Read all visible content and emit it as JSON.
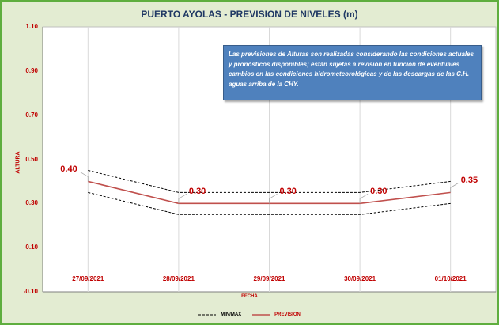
{
  "chart_data": {
    "type": "line",
    "title": "PUERTO AYOLAS - PREVISION DE NIVELES (m)",
    "xlabel": "FECHA",
    "ylabel": "ALTURA",
    "ylim": [
      -0.1,
      1.1
    ],
    "yticks": [
      "1.10",
      "0.90",
      "0.70",
      "0.50",
      "0.30",
      "0.10",
      "-0.10"
    ],
    "categories": [
      "27/09/2021",
      "28/09/2021",
      "29/09/2021",
      "30/09/2021",
      "01/10/2021"
    ],
    "series": [
      {
        "name": "PREVISION",
        "values": [
          0.4,
          0.3,
          0.3,
          0.3,
          0.35
        ],
        "labels": [
          "0.40",
          "0.30",
          "0.30",
          "0.30",
          "0.35"
        ],
        "color": "#c0504d"
      },
      {
        "name": "MIN/MAX",
        "max": [
          0.45,
          0.35,
          0.35,
          0.35,
          0.4
        ],
        "min": [
          0.35,
          0.25,
          0.25,
          0.25,
          0.3
        ],
        "color": "#000000",
        "style": "dashed"
      }
    ],
    "grid": true,
    "legend_position": "bottom",
    "annotation": "Las previsiones de Alturas son realizadas considerando las condiciones actuales y pronósticos disponibles;  están sujetas a revisión en función de eventuales cambios en las condiciones hidrometeorológicas y de las descargas de las C.H. aguas arriba de la CHY."
  }
}
